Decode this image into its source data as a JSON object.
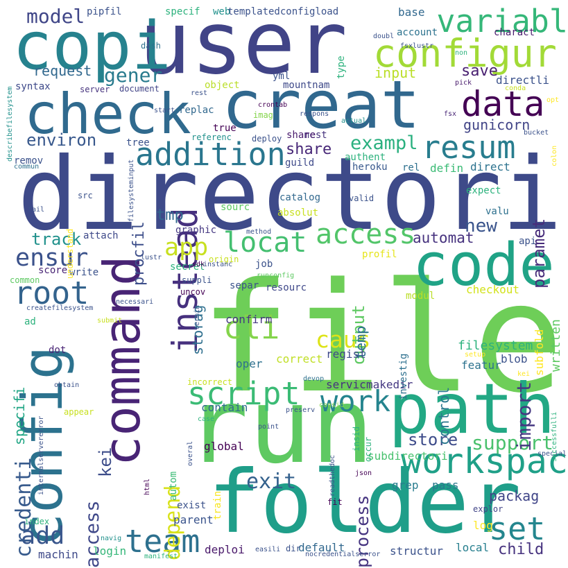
{
  "words": [
    {
      "text": "file",
      "color": "#6ece58"
    },
    {
      "text": "directori",
      "color": "#3e4a89"
    },
    {
      "text": "user",
      "color": "#414487"
    },
    {
      "text": "run",
      "color": "#5ec962"
    },
    {
      "text": "folder",
      "color": "#1f9e89"
    },
    {
      "text": "command",
      "color": "#482475"
    },
    {
      "text": "config",
      "color": "#2c728e"
    },
    {
      "text": "creat",
      "color": "#31688e"
    },
    {
      "text": "copi",
      "color": "#26828e"
    },
    {
      "text": "path",
      "color": "#22a884"
    },
    {
      "text": "check",
      "color": "#306a8e"
    },
    {
      "text": "code",
      "color": "#20a386"
    },
    {
      "text": "configur",
      "color": "#a2da37"
    },
    {
      "text": "data",
      "color": "#440154"
    },
    {
      "text": "variabl",
      "color": "#35b779"
    },
    {
      "text": "resum",
      "color": "#287d8e"
    },
    {
      "text": "workspac",
      "color": "#1fa088"
    },
    {
      "text": "addition",
      "color": "#2a768e"
    },
    {
      "text": "instead",
      "color": "#46307e"
    },
    {
      "text": "script",
      "color": "#3bbb75"
    },
    {
      "text": "work",
      "color": "#25848e"
    },
    {
      "text": "cli",
      "color": "#84d44b"
    },
    {
      "text": "app",
      "color": "#c8e020"
    },
    {
      "text": "locat",
      "color": "#44bf70"
    },
    {
      "text": "access",
      "color": "#52c569"
    },
    {
      "text": "root",
      "color": "#33638d"
    },
    {
      "text": "team",
      "color": "#2d708e"
    },
    {
      "text": "set",
      "color": "#24868e"
    },
    {
      "text": "add",
      "color": "#39568c"
    },
    {
      "text": "credenti",
      "color": "#375a8c"
    },
    {
      "text": "depend",
      "color": "#d8e219"
    },
    {
      "text": "caus",
      "color": "#dde318"
    },
    {
      "text": "exit",
      "color": "#34618d"
    },
    {
      "text": "ensur",
      "color": "#3b528b"
    },
    {
      "text": "support",
      "color": "#4ac16d"
    },
    {
      "text": "import",
      "color": "#453781"
    },
    {
      "text": "model",
      "color": "#404688"
    },
    {
      "text": "gener",
      "color": "#297b8e"
    },
    {
      "text": "exampl",
      "color": "#2ab07f"
    },
    {
      "text": "share",
      "color": "#482878"
    },
    {
      "text": "environ",
      "color": "#38588c"
    },
    {
      "text": "access",
      "color": "#3f4889"
    },
    {
      "text": "process",
      "color": "#463480"
    },
    {
      "text": "packag",
      "color": "#404588"
    },
    {
      "text": "track",
      "color": "#21918c"
    },
    {
      "text": "store",
      "color": "#3e4c8a"
    },
    {
      "text": "new",
      "color": "#3a548c"
    },
    {
      "text": "gunicorn",
      "color": "#414487"
    },
    {
      "text": "save",
      "color": "#481f70"
    },
    {
      "text": "input",
      "color": "#bade28"
    },
    {
      "text": "paramet",
      "color": "#472c7a"
    },
    {
      "text": "output",
      "color": "#5ec962"
    },
    {
      "text": "control",
      "color": "#2a788e"
    },
    {
      "text": "procfil",
      "color": "#3d4e8a"
    },
    {
      "text": "automat",
      "color": "#46327e"
    },
    {
      "text": "storag",
      "color": "#2e6f8e"
    },
    {
      "text": "child",
      "color": "#46327e"
    },
    {
      "text": "kei",
      "color": "#3d4d8a"
    },
    {
      "text": "specifi",
      "color": "#21a685"
    },
    {
      "text": "tmp",
      "color": "#31688e"
    },
    {
      "text": "request",
      "color": "#31688e"
    },
    {
      "text": "temp",
      "color": "#2d708e"
    },
    {
      "text": "filesystem",
      "color": "#2db27d"
    },
    {
      "text": "written",
      "color": "#5ec962"
    },
    {
      "text": "subfold",
      "color": "#fde725"
    },
    {
      "text": "checkout",
      "color": "#d2e21b"
    },
    {
      "text": "blob",
      "color": "#3b528b"
    },
    {
      "text": "subdirectori",
      "color": "#48c16e"
    },
    {
      "text": "direct",
      "color": "#2c728e"
    },
    {
      "text": "defin",
      "color": "#3bbb75"
    },
    {
      "text": "parent",
      "color": "#3a548c"
    },
    {
      "text": "login",
      "color": "#35b779"
    },
    {
      "text": "machin",
      "color": "#3e4989"
    },
    {
      "text": "deploi",
      "color": "#481769"
    },
    {
      "text": "log",
      "color": "#fde725"
    },
    {
      "text": "local",
      "color": "#277f8e"
    },
    {
      "text": "default",
      "color": "#31688e"
    },
    {
      "text": "structur",
      "color": "#3b528b"
    },
    {
      "text": "grep",
      "color": "#287c8e"
    },
    {
      "text": "pass",
      "color": "#2a788e"
    },
    {
      "text": "featur",
      "color": "#2c728e"
    },
    {
      "text": "regist",
      "color": "#3e4989"
    },
    {
      "text": "confirm",
      "color": "#453781"
    },
    {
      "text": "correct",
      "color": "#c0df25"
    },
    {
      "text": "oper",
      "color": "#2d708e"
    },
    {
      "text": "servic",
      "color": "#46337e"
    },
    {
      "text": "makedir",
      "color": "#453882"
    },
    {
      "text": "contain",
      "color": "#2f6c8e"
    },
    {
      "text": "global",
      "color": "#440154"
    },
    {
      "text": "exist",
      "color": "#3b528b"
    },
    {
      "text": "train",
      "color": "#f8e621"
    },
    {
      "text": "autom",
      "color": "#3bbb75"
    },
    {
      "text": "index",
      "color": "#2db27d"
    },
    {
      "text": "explor",
      "color": "#414487"
    },
    {
      "text": "fit",
      "color": "#440154"
    },
    {
      "text": "dot",
      "color": "#482475"
    },
    {
      "text": "resourc",
      "color": "#3f4889"
    },
    {
      "text": "separ",
      "color": "#3b528b"
    },
    {
      "text": "job",
      "color": "#3b528b"
    },
    {
      "text": "profil",
      "color": "#e5e419"
    },
    {
      "text": "modul",
      "color": "#bade28"
    },
    {
      "text": "investig",
      "color": "#2d708e"
    },
    {
      "text": "guild",
      "color": "#3e4989"
    },
    {
      "text": "rel",
      "color": "#2d708e"
    },
    {
      "text": "heroku",
      "color": "#38588c"
    },
    {
      "text": "authent",
      "color": "#2db27d"
    },
    {
      "text": "nest",
      "color": "#46337e"
    },
    {
      "text": "share",
      "color": "#481a6c"
    },
    {
      "text": "expect",
      "color": "#2db27d"
    },
    {
      "text": "valu",
      "color": "#2d708e"
    },
    {
      "text": "api",
      "color": "#3b528b"
    },
    {
      "text": "attach",
      "color": "#3e4989"
    },
    {
      "text": "graphic",
      "color": "#453781"
    },
    {
      "text": "secret",
      "color": "#2db27d"
    },
    {
      "text": "sourc",
      "color": "#5ec962"
    },
    {
      "text": "absolut",
      "color": "#c8e020"
    },
    {
      "text": "catalog",
      "color": "#31688e"
    },
    {
      "text": "valid",
      "color": "#3b528b"
    },
    {
      "text": "src",
      "color": "#3b528b"
    },
    {
      "text": "write",
      "color": "#3b528b"
    },
    {
      "text": "score",
      "color": "#482475"
    },
    {
      "text": "common",
      "color": "#5ec962"
    },
    {
      "text": "ad",
      "color": "#2db27d"
    },
    {
      "text": "understand",
      "color": "#fde725"
    },
    {
      "text": "remov",
      "color": "#3b528b"
    },
    {
      "text": "syntax",
      "color": "#3e4989"
    },
    {
      "text": "tree",
      "color": "#3b528b"
    },
    {
      "text": "true",
      "color": "#440154"
    },
    {
      "text": "replac",
      "color": "#31688e"
    },
    {
      "text": "referenc",
      "color": "#21918c"
    },
    {
      "text": "deploy",
      "color": "#3b528b"
    },
    {
      "text": "imag",
      "color": "#84d44b"
    },
    {
      "text": "object",
      "color": "#bade28"
    },
    {
      "text": "mountnam",
      "color": "#3e4989"
    },
    {
      "text": "yml",
      "color": "#3b528b"
    },
    {
      "text": "server",
      "color": "#46337e"
    },
    {
      "text": "document",
      "color": "#414487"
    },
    {
      "text": "specif",
      "color": "#2db27d"
    },
    {
      "text": "web",
      "color": "#21918c"
    },
    {
      "text": "templatedconfigload",
      "color": "#3b528b"
    },
    {
      "text": "pipfil",
      "color": "#3b528b"
    },
    {
      "text": "dash",
      "color": "#2d708e"
    },
    {
      "text": "type",
      "color": "#2db27d"
    },
    {
      "text": "base",
      "color": "#31688e"
    },
    {
      "text": "account",
      "color": "#2c728e"
    },
    {
      "text": "charact",
      "color": "#481a6c"
    },
    {
      "text": "directli",
      "color": "#3b528b"
    },
    {
      "text": "doubl",
      "color": "#3b528b"
    },
    {
      "text": "fsxlustr",
      "color": "#3b528b"
    },
    {
      "text": "non",
      "color": "#2db27d"
    },
    {
      "text": "pick",
      "color": "#481a6c"
    },
    {
      "text": "conda",
      "color": "#c8e020"
    },
    {
      "text": "opt",
      "color": "#fde725"
    },
    {
      "text": "fsx",
      "color": "#482475"
    },
    {
      "text": "actual",
      "color": "#21918c"
    },
    {
      "text": "bucket",
      "color": "#3b528b"
    },
    {
      "text": "colon",
      "color": "#fde725"
    },
    {
      "text": "respons",
      "color": "#3b528b"
    },
    {
      "text": "crontab",
      "color": "#440154"
    },
    {
      "text": "rest",
      "color": "#3b528b"
    },
    {
      "text": "start",
      "color": "#3b528b"
    },
    {
      "text": "describefilesystem",
      "color": "#21918c"
    },
    {
      "text": "commun",
      "color": "#2d708e"
    },
    {
      "text": "fail",
      "color": "#3b528b"
    },
    {
      "text": "filesysteminput",
      "color": "#3b528b"
    },
    {
      "text": "method",
      "color": "#3b528b"
    },
    {
      "text": "sdk",
      "color": "#440154"
    },
    {
      "text": "origin",
      "color": "#c8e020"
    },
    {
      "text": "runconfig",
      "color": "#5ec962"
    },
    {
      "text": "suppli",
      "color": "#3b528b"
    },
    {
      "text": "uncov",
      "color": "#440154"
    },
    {
      "text": "lustr",
      "color": "#3b528b"
    },
    {
      "text": "createfilesystem",
      "color": "#3b528b"
    },
    {
      "text": "submit",
      "color": "#c8e020"
    },
    {
      "text": "necessari",
      "color": "#3b528b"
    },
    {
      "text": "termin",
      "color": "#3b528b"
    },
    {
      "text": "instanc",
      "color": "#3b528b"
    },
    {
      "text": "obtain",
      "color": "#3b528b"
    },
    {
      "text": "incorrect",
      "color": "#c8e020"
    },
    {
      "text": "devop",
      "color": "#2d708e"
    },
    {
      "text": "appear",
      "color": "#c8e020"
    },
    {
      "text": "consid",
      "color": "#84d44b"
    },
    {
      "text": "insid",
      "color": "#2db27d"
    },
    {
      "text": "occur",
      "color": "#2db27d"
    },
    {
      "text": "preserv",
      "color": "#3b528b"
    },
    {
      "text": "point",
      "color": "#3b528b"
    },
    {
      "text": "case",
      "color": "#2db27d"
    },
    {
      "text": "internalservererror",
      "color": "#3b528b"
    },
    {
      "text": "overal",
      "color": "#3b528b"
    },
    {
      "text": "html",
      "color": "#440154"
    },
    {
      "text": "json",
      "color": "#440154"
    },
    {
      "text": "readthedoc",
      "color": "#3b528b"
    },
    {
      "text": "special",
      "color": "#3b528b"
    },
    {
      "text": "setup",
      "color": "#fde725"
    },
    {
      "text": "successfulli",
      "color": "#2db27d"
    },
    {
      "text": "kei",
      "color": "#fde725"
    },
    {
      "text": "navig",
      "color": "#21918c"
    },
    {
      "text": "manifest",
      "color": "#2db27d"
    },
    {
      "text": "easili",
      "color": "#3b528b"
    },
    {
      "text": "nocredentialserror",
      "color": "#3b528b"
    },
    {
      "text": "dir",
      "color": "#3b528b"
    }
  ]
}
